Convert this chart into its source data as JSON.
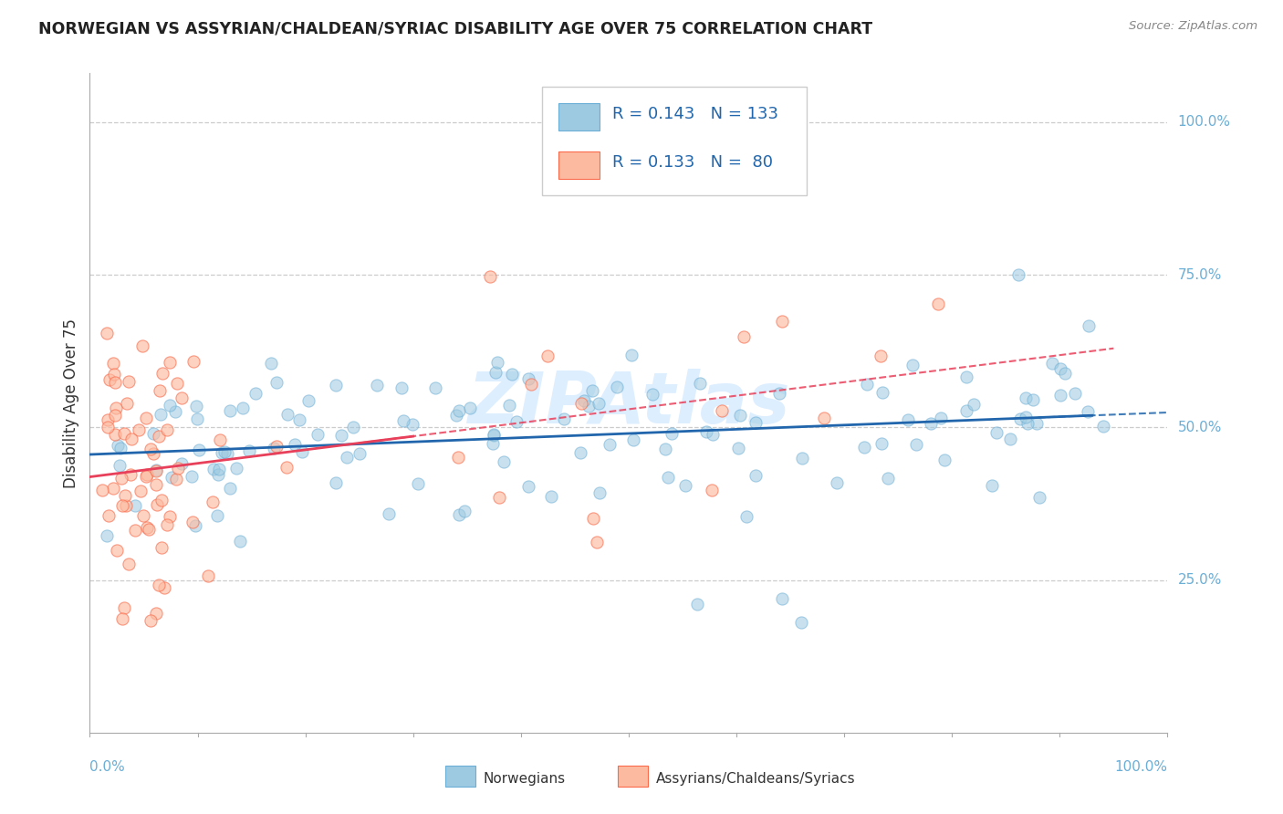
{
  "title": "NORWEGIAN VS ASSYRIAN/CHALDEAN/SYRIAC DISABILITY AGE OVER 75 CORRELATION CHART",
  "source": "Source: ZipAtlas.com",
  "ylabel": "Disability Age Over 75",
  "norwegian_color": "#9ecae1",
  "norwegian_edge": "#6baed6",
  "assyrian_color": "#fcbba1",
  "assyrian_edge": "#fb6a4a",
  "trend_norwegian_color": "#2166ac",
  "trend_assyrian_color": "#e8405a",
  "legend_text_color": "#2166ac",
  "watermark_color": "#ddeeff",
  "y_gridline_color": "#cccccc",
  "spine_color": "#aaaaaa",
  "right_label_color": "#6baed6",
  "bottom_label_color": "#6baed6"
}
